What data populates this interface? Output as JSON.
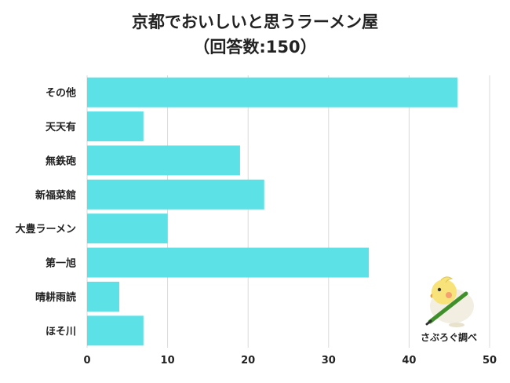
{
  "title": "京都でおいしいと思うラーメン屋",
  "subtitle": "（回答数:150）",
  "credit": "さぶろぐ調べ",
  "colors": {
    "bar": "#5ce1e6",
    "grid": "#d9d9d9",
    "text": "#222222"
  },
  "chart_data": {
    "type": "bar",
    "orientation": "horizontal",
    "categories": [
      "その他",
      "天天有",
      "無鉄砲",
      "新福菜館",
      "大豊ラーメン",
      "第一旭",
      "晴耕雨読",
      "ほそ川"
    ],
    "values": [
      46,
      7,
      19,
      22,
      10,
      35,
      4,
      7
    ],
    "xlim": [
      0,
      50
    ],
    "xticks": [
      0,
      10,
      20,
      30,
      40,
      50
    ],
    "grid": true,
    "legend": "none"
  }
}
